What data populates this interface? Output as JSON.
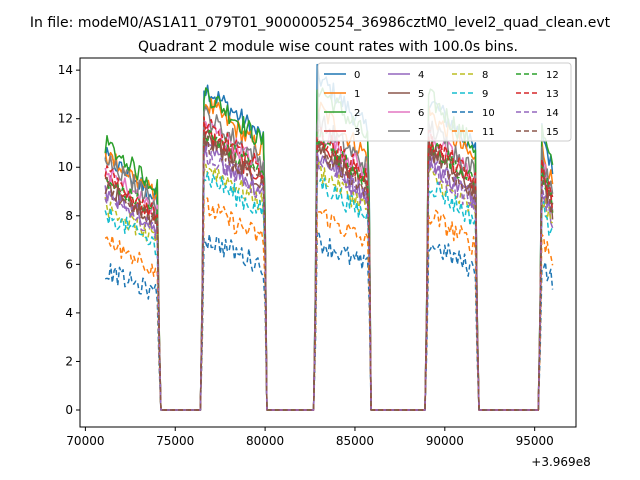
{
  "figure": {
    "suptitle": "In file: modeM0/AS1A11_079T01_9000005254_36986cztM0_level2_quad_clean.evt",
    "title": "Quadrant 2 module wise count rates with 100.0s bins.",
    "x_offset_text": "+3.969e8"
  },
  "chart_data": {
    "type": "line",
    "title": "Quadrant 2 module wise count rates with 100.0s bins.",
    "xlabel": "",
    "ylabel": "",
    "x_offset": 396900000,
    "xlim": [
      69700,
      97300
    ],
    "ylim": [
      -0.7,
      14.5
    ],
    "xticks": [
      70000,
      75000,
      80000,
      85000,
      90000,
      95000
    ],
    "xtick_labels": [
      "70000",
      "75000",
      "80000",
      "85000",
      "90000",
      "95000"
    ],
    "yticks": [
      0,
      2,
      4,
      6,
      8,
      10,
      12,
      14
    ],
    "ytick_labels": [
      "0",
      "2",
      "4",
      "6",
      "8",
      "10",
      "12",
      "14"
    ],
    "grid": false,
    "legend": {
      "placement": "top-right",
      "columns": 4
    },
    "on_intervals": [
      [
        71100,
        74000
      ],
      [
        76550,
        79950
      ],
      [
        82850,
        85750
      ],
      [
        89050,
        91700
      ],
      [
        95350,
        96050
      ]
    ],
    "series": [
      {
        "name": "0",
        "color": "#1f77b4",
        "dashed": false,
        "levels": [
          10.2,
          12.4,
          12.8,
          11.9,
          10.8
        ]
      },
      {
        "name": "1",
        "color": "#ff7f0e",
        "dashed": false,
        "levels": [
          10.3,
          11.8,
          11.6,
          11.4,
          10.2
        ]
      },
      {
        "name": "2",
        "color": "#2ca02c",
        "dashed": false,
        "levels": [
          10.7,
          12.2,
          12.4,
          12.0,
          10.8
        ]
      },
      {
        "name": "3",
        "color": "#d62728",
        "dashed": false,
        "levels": [
          9.2,
          10.6,
          10.3,
          10.2,
          9.2
        ]
      },
      {
        "name": "4",
        "color": "#9467bd",
        "dashed": false,
        "levels": [
          8.8,
          10.0,
          9.8,
          9.6,
          8.7
        ]
      },
      {
        "name": "5",
        "color": "#8c564b",
        "dashed": false,
        "levels": [
          9.0,
          10.4,
          10.1,
          10.0,
          9.0
        ]
      },
      {
        "name": "6",
        "color": "#e377c2",
        "dashed": false,
        "levels": [
          9.6,
          11.0,
          10.8,
          10.6,
          9.6
        ]
      },
      {
        "name": "7",
        "color": "#7f7f7f",
        "dashed": false,
        "levels": [
          10.0,
          11.3,
          11.1,
          10.9,
          9.9
        ]
      },
      {
        "name": "8",
        "color": "#bcbd22",
        "dashed": true,
        "levels": [
          8.2,
          9.4,
          9.2,
          9.0,
          8.2
        ]
      },
      {
        "name": "9",
        "color": "#17becf",
        "dashed": true,
        "levels": [
          7.9,
          9.0,
          8.8,
          8.7,
          7.9
        ]
      },
      {
        "name": "10",
        "color": "#1f77b4",
        "dashed": true,
        "levels": [
          5.6,
          6.6,
          6.5,
          6.4,
          5.8
        ]
      },
      {
        "name": "11",
        "color": "#ff7f0e",
        "dashed": true,
        "levels": [
          6.8,
          7.8,
          7.6,
          7.5,
          6.8
        ]
      },
      {
        "name": "12",
        "color": "#2ca02c",
        "dashed": true,
        "levels": [
          9.3,
          10.7,
          10.5,
          10.3,
          9.3
        ]
      },
      {
        "name": "13",
        "color": "#d62728",
        "dashed": true,
        "levels": [
          9.5,
          10.9,
          10.6,
          10.4,
          9.4
        ]
      },
      {
        "name": "14",
        "color": "#9467bd",
        "dashed": true,
        "levels": [
          8.6,
          9.9,
          9.6,
          9.4,
          8.6
        ]
      },
      {
        "name": "15",
        "color": "#8c564b",
        "dashed": true,
        "levels": [
          9.1,
          10.3,
          10.0,
          9.9,
          9.0
        ]
      }
    ]
  }
}
